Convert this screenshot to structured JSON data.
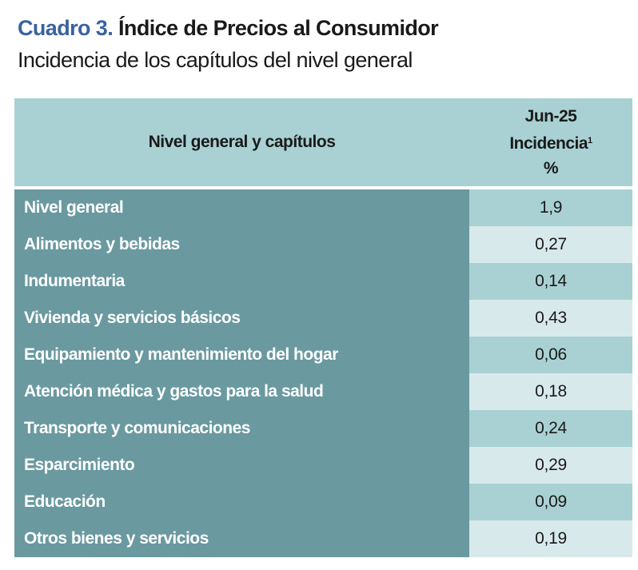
{
  "header": {
    "title_prefix": "Cuadro 3.",
    "title": "Índice de Precios al Consumidor",
    "subtitle": "Incidencia de los capítulos del nivel general"
  },
  "colors": {
    "title_prefix": "#3a62a0",
    "label_column": "#6a99a0",
    "header_bg": "#a9d1d4",
    "value_alt_bg": "#d8e9ec"
  },
  "table": {
    "col_label_header": "Nivel general y capítulos",
    "col_value_header_line1": "Jun-25",
    "col_value_header_line2": "Incidencia",
    "col_value_header_footnote": "1",
    "col_value_header_line3": "%",
    "rows": [
      {
        "label": "Nivel general",
        "value": "1,9"
      },
      {
        "label": "Alimentos y bebidas",
        "value": "0,27"
      },
      {
        "label": "Indumentaria",
        "value": "0,14"
      },
      {
        "label": "Vivienda y servicios básicos",
        "value": "0,43"
      },
      {
        "label": "Equipamiento y mantenimiento del hogar",
        "value": "0,06"
      },
      {
        "label": "Atención médica y gastos para la salud",
        "value": "0,18"
      },
      {
        "label": "Transporte y comunicaciones",
        "value": "0,24"
      },
      {
        "label": "Esparcimiento",
        "value": "0,29"
      },
      {
        "label": "Educación",
        "value": "0,09"
      },
      {
        "label": "Otros bienes y servicios",
        "value": "0,19"
      }
    ]
  }
}
